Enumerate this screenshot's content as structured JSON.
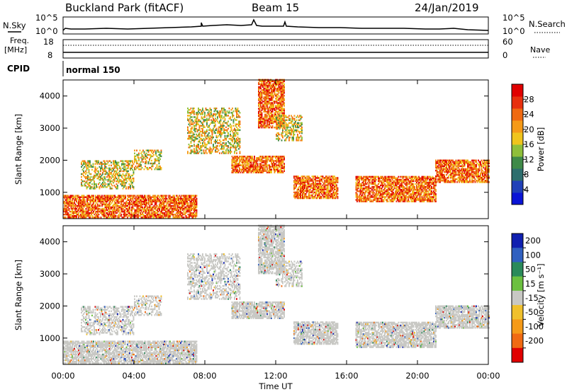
{
  "header": {
    "station": "Buckland Park (fitACF)",
    "beam": "Beam 15",
    "date": "24/Jan/2019"
  },
  "panels": {
    "noise": {
      "left_label": "N.Sky",
      "right_label": "N.Search",
      "left_ticks": [
        "10^5",
        "10^0"
      ],
      "right_ticks": [
        "10^5",
        "10^0"
      ]
    },
    "freq": {
      "left_label_1": "Freq.",
      "left_label_2": "[MHz]",
      "right_label": "Nave",
      "left_ticks": [
        "18",
        "8"
      ],
      "right_ticks": [
        "60",
        "0"
      ]
    },
    "cpid": {
      "label": "CPID",
      "value": "normal 150"
    }
  },
  "chart_data": [
    {
      "type": "heatmap",
      "name": "power",
      "ylabel": "Slant Range [km]",
      "yticks": [
        "1000",
        "2000",
        "3000",
        "4000"
      ],
      "ylim_km": [
        180,
        4500
      ],
      "xlim_hours": [
        0,
        24
      ],
      "colorbar": {
        "label": "Power [dB]",
        "ticks": [
          "4",
          "8",
          "12",
          "16",
          "20",
          "24",
          "28"
        ],
        "colors": [
          "#0a14d6",
          "#2040b8",
          "#2e6e6e",
          "#3f8a48",
          "#8fbf3a",
          "#f0c41c",
          "#f59a18",
          "#f06a12",
          "#e8300e",
          "#e00000"
        ]
      },
      "echo_regions": [
        {
          "t": [
            0.0,
            7.5
          ],
          "r": [
            200,
            900
          ],
          "level": "high"
        },
        {
          "t": [
            1.0,
            4.0
          ],
          "r": [
            1100,
            2000
          ],
          "level": "mid"
        },
        {
          "t": [
            4.0,
            5.5
          ],
          "r": [
            1700,
            2300
          ],
          "level": "mid"
        },
        {
          "t": [
            7.0,
            10.0
          ],
          "r": [
            2200,
            3600
          ],
          "level": "mid"
        },
        {
          "t": [
            9.5,
            12.5
          ],
          "r": [
            1600,
            2100
          ],
          "level": "high"
        },
        {
          "t": [
            11.0,
            12.5
          ],
          "r": [
            3000,
            4500
          ],
          "level": "high"
        },
        {
          "t": [
            12.0,
            13.5
          ],
          "r": [
            2600,
            3400
          ],
          "level": "mid"
        },
        {
          "t": [
            13.0,
            15.5
          ],
          "r": [
            800,
            1500
          ],
          "level": "high"
        },
        {
          "t": [
            16.5,
            21.0
          ],
          "r": [
            700,
            1500
          ],
          "level": "high"
        },
        {
          "t": [
            21.0,
            24.0
          ],
          "r": [
            1300,
            2000
          ],
          "level": "high"
        }
      ]
    },
    {
      "type": "heatmap",
      "name": "velocity",
      "ylabel": "Slant Range [km]",
      "yticks": [
        "1000",
        "2000",
        "3000",
        "4000"
      ],
      "ylim_km": [
        180,
        4500
      ],
      "xlim_hours": [
        0,
        24
      ],
      "xticks": [
        "00:00",
        "04:00",
        "08:00",
        "12:00",
        "16:00",
        "20:00",
        "00:00"
      ],
      "xlabel": "Time UT",
      "colorbar": {
        "label": "Velocity [m s⁻¹]",
        "ticks": [
          "200",
          "100",
          "50",
          "15",
          "-15",
          "-50",
          "-100",
          "-200"
        ],
        "colors": [
          "#1020b0",
          "#3060c0",
          "#2a8a5a",
          "#6cc040",
          "#c8c8c4",
          "#f0c02c",
          "#f59a18",
          "#f06a12",
          "#e00000"
        ]
      },
      "ground_scatter_color": "#c8c8c4"
    }
  ]
}
